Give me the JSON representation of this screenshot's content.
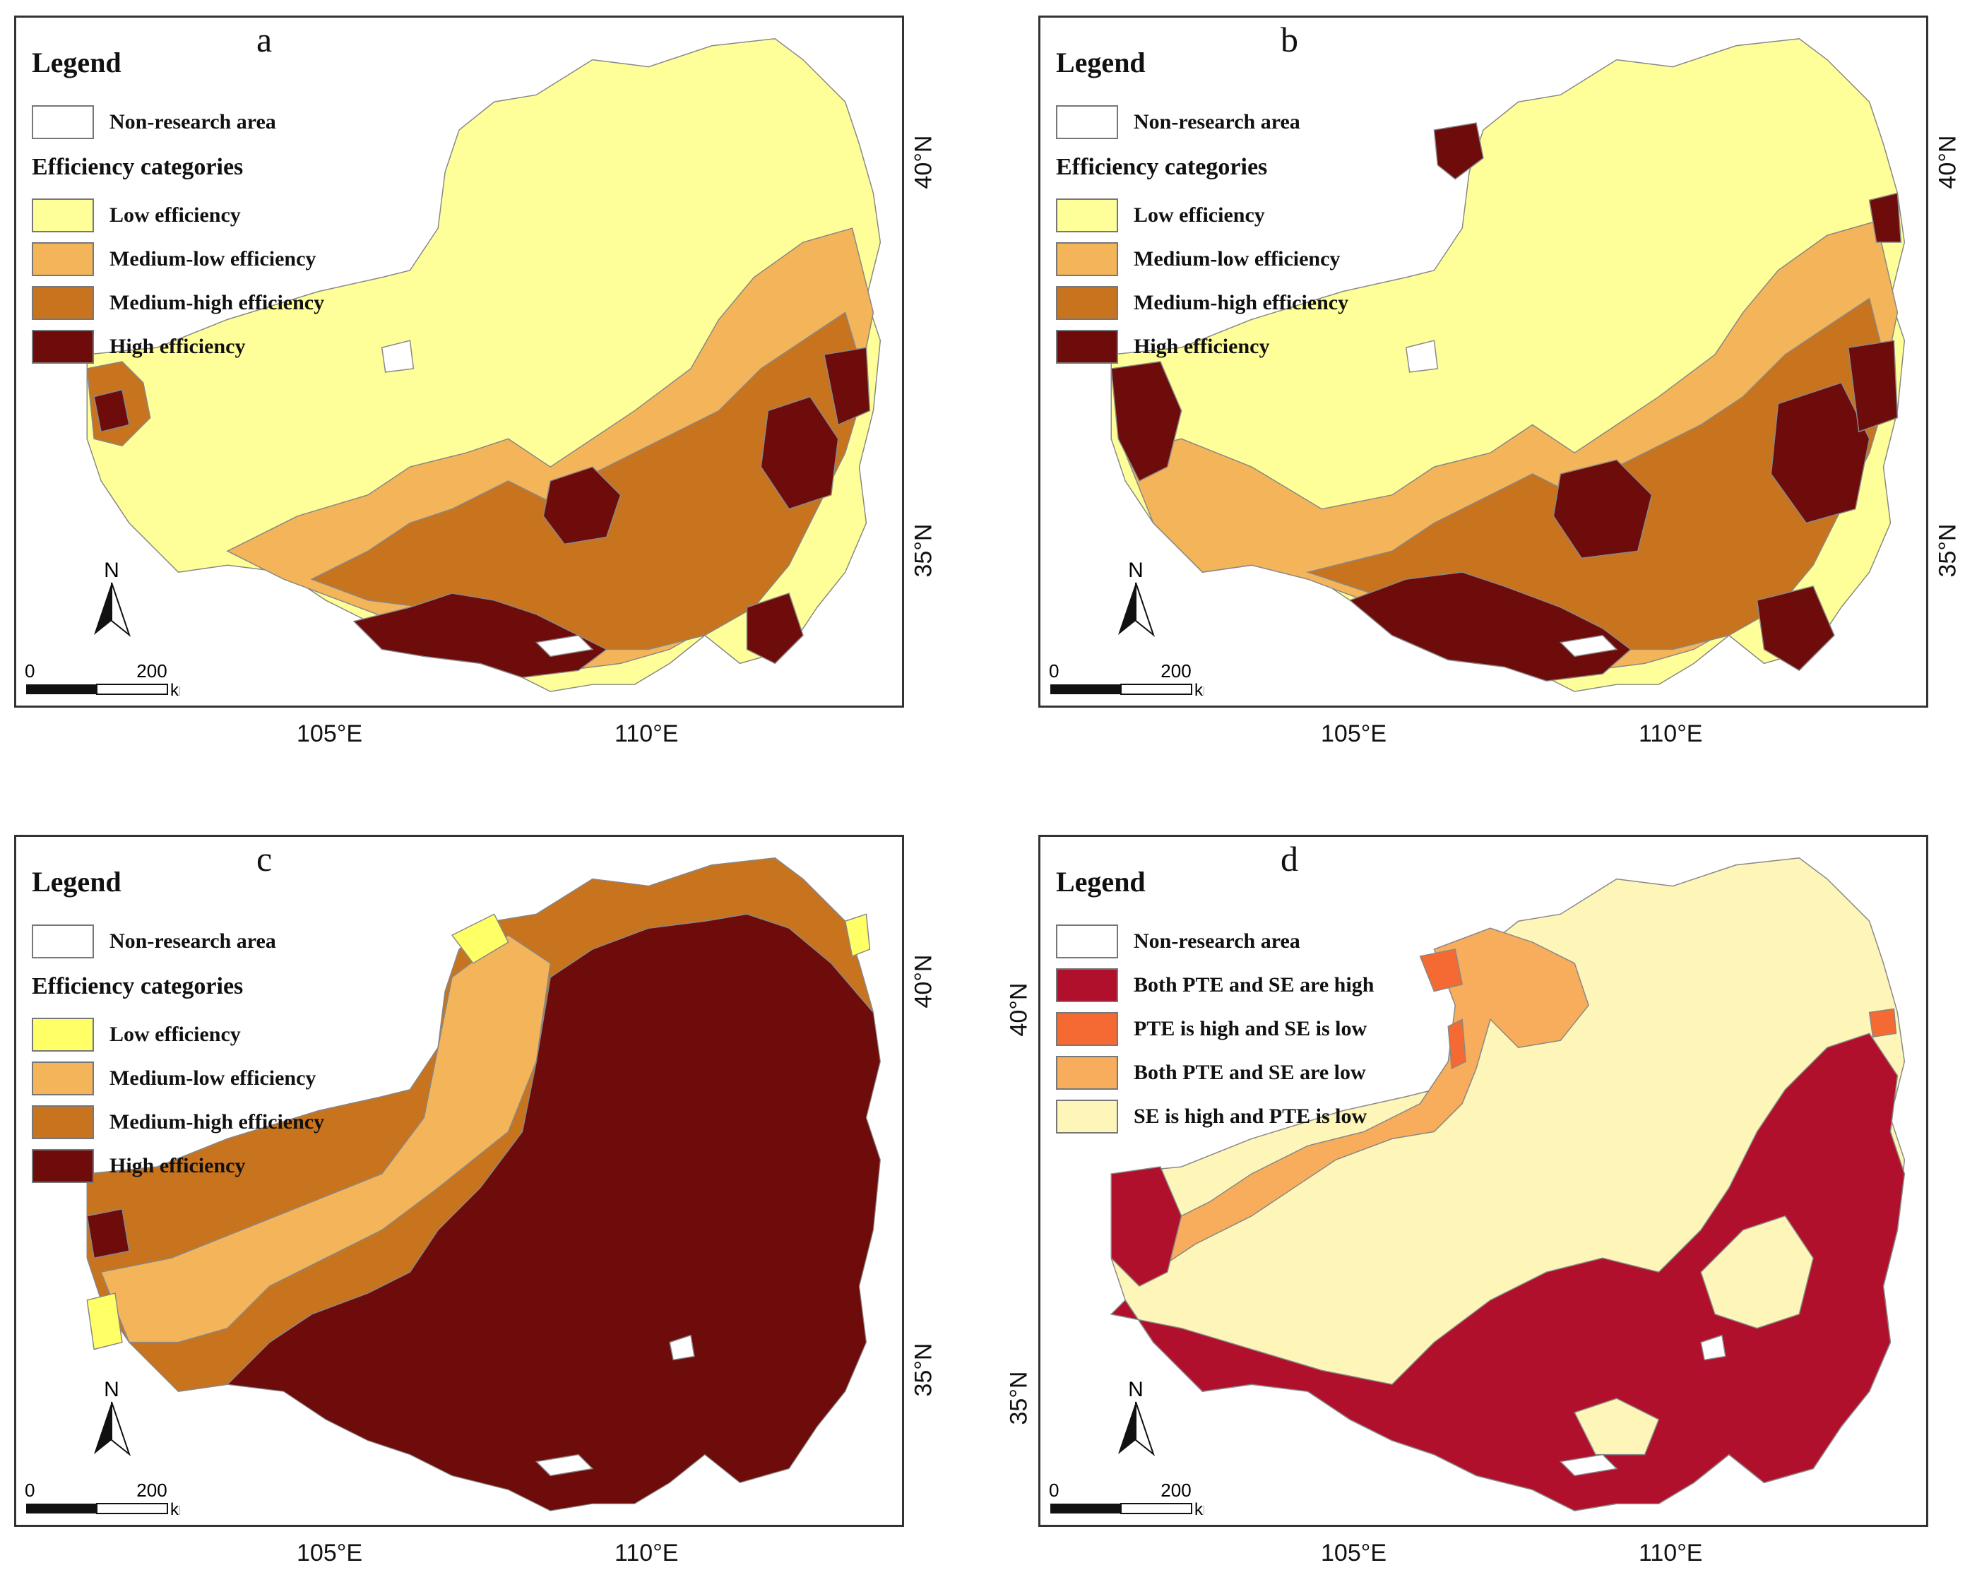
{
  "panels": [
    {
      "id": "a",
      "label": "a",
      "legend_title": "Legend",
      "items_pre": [
        {
          "label": "Non-research area",
          "color": "#ffffff"
        }
      ],
      "subtitle": "Efficiency categories",
      "items": [
        {
          "label": "Low efficiency",
          "color": "#ffff99"
        },
        {
          "label": "Medium-low efficiency",
          "color": "#f4b55a"
        },
        {
          "label": "Medium-high efficiency",
          "color": "#c8731e"
        },
        {
          "label": "High efficiency",
          "color": "#6e0b0b"
        }
      ]
    },
    {
      "id": "b",
      "label": "b",
      "legend_title": "Legend",
      "items_pre": [
        {
          "label": "Non-research area",
          "color": "#ffffff"
        }
      ],
      "subtitle": "Efficiency categories",
      "items": [
        {
          "label": "Low efficiency",
          "color": "#ffff99"
        },
        {
          "label": "Medium-low efficiency",
          "color": "#f4b55a"
        },
        {
          "label": "Medium-high efficiency",
          "color": "#c8731e"
        },
        {
          "label": "High efficiency",
          "color": "#6e0b0b"
        }
      ]
    },
    {
      "id": "c",
      "label": "c",
      "legend_title": "Legend",
      "items_pre": [
        {
          "label": "Non-research area",
          "color": "#ffffff"
        }
      ],
      "subtitle": "Efficiency categories",
      "items": [
        {
          "label": "Low efficiency",
          "color": "#ffff66"
        },
        {
          "label": "Medium-low efficiency",
          "color": "#f4b55a"
        },
        {
          "label": "Medium-high efficiency",
          "color": "#c8731e"
        },
        {
          "label": "High efficiency",
          "color": "#6e0b0b"
        }
      ]
    },
    {
      "id": "d",
      "label": "d",
      "legend_title": "Legend",
      "items_pre": [],
      "subtitle": "",
      "items": [
        {
          "label": "Non-research area",
          "color": "#ffffff"
        },
        {
          "label": "Both PTE and SE are high",
          "color": "#b0102c"
        },
        {
          "label": "PTE is high and SE is low",
          "color": "#f56a32"
        },
        {
          "label": "Both PTE and SE are low",
          "color": "#f7ad5b"
        },
        {
          "label": "SE is high and PTE is low",
          "color": "#fdf6b8"
        }
      ]
    }
  ],
  "scale": {
    "zero": "0",
    "length": "200",
    "unit": "km"
  },
  "north_label": "N",
  "lon_labels": [
    "105°E",
    "110°E"
  ],
  "lat_labels": [
    "40°N",
    "35°N"
  ]
}
